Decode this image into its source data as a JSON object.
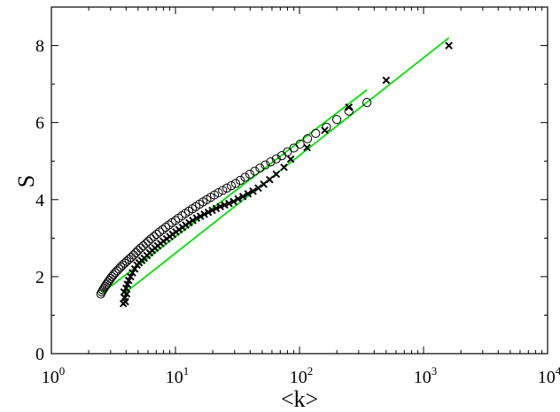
{
  "chart_data": {
    "type": "scatter",
    "title": "",
    "xlabel": "<k>",
    "ylabel": "S",
    "x_scale": "log",
    "xlim": [
      1,
      10000
    ],
    "ylim": [
      0,
      9
    ],
    "grid": false,
    "legend": "none",
    "x_ticks": [
      {
        "value": 1,
        "base": "10",
        "exp": "0"
      },
      {
        "value": 10,
        "base": "10",
        "exp": "1"
      },
      {
        "value": 100,
        "base": "10",
        "exp": "2"
      },
      {
        "value": 1000,
        "base": "10",
        "exp": "3"
      },
      {
        "value": 10000,
        "base": "10",
        "exp": "4"
      }
    ],
    "y_ticks": [
      {
        "value": 0,
        "label": "0"
      },
      {
        "value": 2,
        "label": "2"
      },
      {
        "value": 4,
        "label": "4"
      },
      {
        "value": 6,
        "label": "6"
      },
      {
        "value": 8,
        "label": "8"
      }
    ],
    "series": [
      {
        "marker": "circle",
        "color": "#000000",
        "x": [
          2.5,
          2.55,
          2.6,
          2.66,
          2.72,
          2.78,
          2.85,
          2.92,
          3.0,
          3.08,
          3.17,
          3.27,
          3.38,
          3.5,
          3.62,
          3.75,
          3.9,
          4.05,
          4.22,
          4.4,
          4.6,
          4.8,
          5.0,
          5.25,
          5.5,
          5.78,
          6.05,
          6.35,
          6.7,
          7.05,
          7.45,
          7.9,
          8.35,
          8.85,
          9.4,
          10.0,
          10.6,
          11.3,
          12.0,
          12.8,
          13.7,
          14.6,
          15.6,
          16.7,
          17.9,
          19.2,
          20.6,
          22.2,
          24.0,
          26.0,
          28.2,
          30.6,
          33.3,
          36.4,
          39.8,
          43.6,
          48.0,
          53.0,
          58.5,
          65.0,
          72.0,
          80.0,
          90.0,
          101,
          116,
          135,
          165,
          200,
          250,
          350
        ],
        "y": [
          1.55,
          1.6,
          1.65,
          1.7,
          1.75,
          1.8,
          1.85,
          1.9,
          1.95,
          2.0,
          2.05,
          2.1,
          2.15,
          2.2,
          2.25,
          2.3,
          2.35,
          2.4,
          2.45,
          2.5,
          2.56,
          2.62,
          2.68,
          2.74,
          2.8,
          2.86,
          2.92,
          2.98,
          3.04,
          3.1,
          3.16,
          3.22,
          3.28,
          3.34,
          3.4,
          3.46,
          3.52,
          3.58,
          3.64,
          3.7,
          3.76,
          3.82,
          3.88,
          3.94,
          4.0,
          4.06,
          4.12,
          4.18,
          4.24,
          4.3,
          4.36,
          4.42,
          4.5,
          4.58,
          4.66,
          4.74,
          4.82,
          4.9,
          4.98,
          5.06,
          5.14,
          5.24,
          5.34,
          5.44,
          5.58,
          5.72,
          5.88,
          6.08,
          6.3,
          6.52
        ]
      },
      {
        "marker": "cross",
        "color": "#000000",
        "x": [
          3.8,
          3.85,
          3.9,
          3.95,
          4.0,
          4.05,
          4.1,
          4.2,
          4.35,
          4.5,
          4.7,
          4.9,
          5.1,
          5.35,
          5.6,
          5.9,
          6.2,
          6.5,
          6.85,
          7.2,
          7.6,
          8.0,
          8.5,
          9.0,
          9.5,
          10.1,
          10.7,
          11.4,
          12.1,
          12.9,
          13.8,
          14.8,
          15.9,
          17.1,
          18.4,
          19.8,
          21.3,
          23.0,
          24.9,
          27.0,
          29.4,
          32.0,
          35.0,
          38.4,
          42.2,
          46.5,
          51.5,
          57.5,
          65.0,
          75.0,
          85.0,
          115,
          160,
          250,
          500,
          1600
        ],
        "y": [
          1.3,
          1.6,
          1.45,
          1.35,
          1.7,
          1.55,
          1.8,
          1.9,
          2.0,
          2.1,
          2.2,
          2.3,
          2.36,
          2.42,
          2.48,
          2.55,
          2.62,
          2.68,
          2.74,
          2.8,
          2.86,
          2.92,
          2.98,
          3.04,
          3.1,
          3.16,
          3.22,
          3.28,
          3.34,
          3.4,
          3.46,
          3.52,
          3.57,
          3.62,
          3.67,
          3.72,
          3.77,
          3.82,
          3.86,
          3.9,
          3.95,
          4.02,
          4.08,
          4.15,
          4.22,
          4.3,
          4.4,
          4.52,
          4.66,
          4.84,
          5.05,
          5.35,
          5.8,
          6.4,
          7.1,
          8.0
        ]
      }
    ],
    "fit_lines": [
      {
        "color": "#00e000",
        "x": [
          2.5,
          350
        ],
        "y": [
          1.55,
          6.85
        ]
      },
      {
        "color": "#00e000",
        "x": [
          4.0,
          1600
        ],
        "y": [
          1.6,
          8.2
        ]
      }
    ]
  }
}
